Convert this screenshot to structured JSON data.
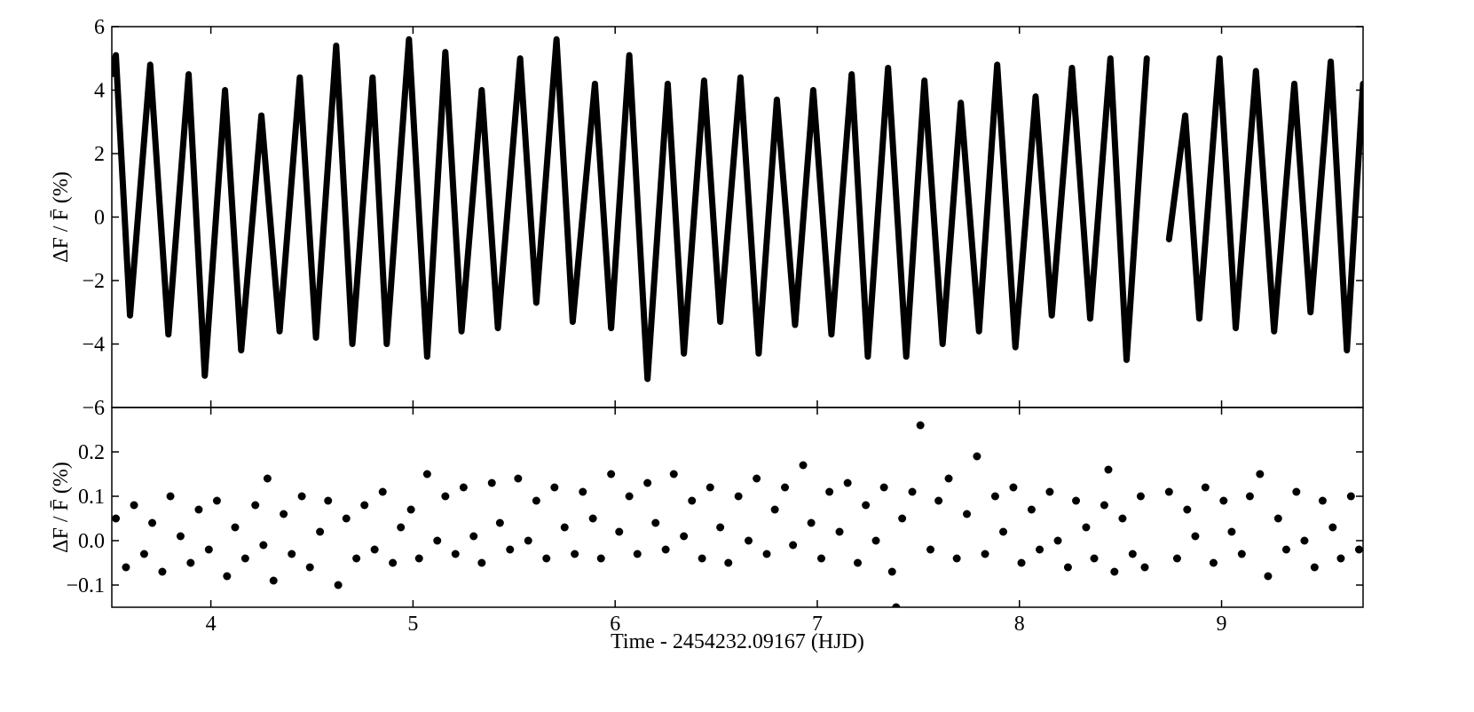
{
  "chart_data": [
    {
      "type": "line",
      "ylabel": "ΔF / F̄ (%)",
      "color": "#000000",
      "x": [
        3.51,
        3.53,
        3.6,
        3.7,
        3.79,
        3.89,
        3.97,
        4.07,
        4.15,
        4.25,
        4.34,
        4.44,
        4.52,
        4.62,
        4.7,
        4.8,
        4.87,
        4.98,
        5.07,
        5.16,
        5.24,
        5.34,
        5.42,
        5.53,
        5.61,
        5.71,
        5.79,
        5.9,
        5.98,
        6.07,
        6.16,
        6.26,
        6.34,
        6.44,
        6.52,
        6.62,
        6.71,
        6.8,
        6.89,
        6.98,
        7.07,
        7.17,
        7.25,
        7.35,
        7.44,
        7.53,
        7.62,
        7.71,
        7.8,
        7.89,
        7.98,
        8.08,
        8.16,
        8.26,
        8.35,
        8.45,
        8.53,
        8.63,
        8.7,
        8.74,
        8.82,
        8.89,
        8.99,
        9.07,
        9.17,
        9.26,
        9.36,
        9.44,
        9.54,
        9.62,
        9.7
      ],
      "values": [
        4.5,
        5.1,
        -3.1,
        4.8,
        -3.7,
        4.5,
        -5.0,
        4.0,
        -4.2,
        3.2,
        -3.6,
        4.4,
        -3.8,
        5.4,
        -4.0,
        4.4,
        -4.0,
        5.6,
        -4.4,
        5.2,
        -3.6,
        4.0,
        -3.5,
        5.0,
        -2.7,
        5.6,
        -3.3,
        4.2,
        -3.5,
        5.1,
        -5.1,
        4.2,
        -4.3,
        4.3,
        -3.3,
        4.4,
        -4.3,
        3.7,
        -3.4,
        4.0,
        -3.7,
        4.5,
        -4.4,
        4.7,
        -4.4,
        4.3,
        -4.0,
        3.6,
        -3.6,
        4.8,
        -4.1,
        3.8,
        -3.1,
        4.7,
        -3.2,
        5.0,
        -4.5,
        5.0,
        null,
        -0.7,
        3.2,
        -3.2,
        5.0,
        -3.5,
        4.6,
        -3.6,
        4.2,
        -3.0,
        4.9,
        -4.2,
        4.2
      ],
      "xlim": [
        3.51,
        9.7
      ],
      "ylim": [
        -6,
        6
      ],
      "yticks": [
        {
          "value": -6,
          "label": "−6"
        },
        {
          "value": -4,
          "label": "−4"
        },
        {
          "value": -2,
          "label": "−2"
        },
        0,
        2,
        4,
        6
      ]
    },
    {
      "type": "scatter",
      "ylabel": "ΔF / F̄ (%)",
      "xlabel": "Time - 2454232.09167 (HJD)",
      "color": "#000000",
      "x": [
        3.53,
        3.58,
        3.62,
        3.67,
        3.71,
        3.76,
        3.8,
        3.85,
        3.9,
        3.94,
        3.99,
        4.03,
        4.08,
        4.12,
        4.17,
        4.22,
        4.26,
        4.28,
        4.31,
        4.36,
        4.4,
        4.45,
        4.49,
        4.54,
        4.58,
        4.63,
        4.67,
        4.72,
        4.76,
        4.81,
        4.85,
        4.9,
        4.94,
        4.99,
        5.03,
        5.07,
        5.12,
        5.16,
        5.21,
        5.25,
        5.3,
        5.34,
        5.39,
        5.43,
        5.48,
        5.52,
        5.57,
        5.61,
        5.66,
        5.7,
        5.75,
        5.8,
        5.84,
        5.89,
        5.93,
        5.98,
        6.02,
        6.07,
        6.11,
        6.16,
        6.2,
        6.25,
        6.29,
        6.34,
        6.38,
        6.43,
        6.47,
        6.52,
        6.56,
        6.61,
        6.66,
        6.7,
        6.75,
        6.79,
        6.84,
        6.88,
        6.93,
        6.97,
        7.02,
        7.06,
        7.11,
        7.15,
        7.2,
        7.24,
        7.29,
        7.33,
        7.37,
        7.39,
        7.42,
        7.47,
        7.51,
        7.56,
        7.6,
        7.65,
        7.69,
        7.74,
        7.79,
        7.83,
        7.88,
        7.92,
        7.97,
        8.01,
        8.06,
        8.1,
        8.15,
        8.19,
        8.24,
        8.28,
        8.33,
        8.37,
        8.42,
        8.44,
        8.47,
        8.51,
        8.56,
        8.6,
        8.62,
        8.74,
        8.78,
        8.83,
        8.87,
        8.92,
        8.96,
        9.01,
        9.05,
        9.1,
        9.14,
        9.19,
        9.23,
        9.28,
        9.32,
        9.37,
        9.41,
        9.46,
        9.5,
        9.55,
        9.59,
        9.64,
        9.68
      ],
      "values": [
        0.05,
        -0.06,
        0.08,
        -0.03,
        0.04,
        -0.07,
        0.1,
        0.01,
        -0.05,
        0.07,
        -0.02,
        0.09,
        -0.08,
        0.03,
        -0.04,
        0.08,
        -0.01,
        0.14,
        -0.09,
        0.06,
        -0.03,
        0.1,
        -0.06,
        0.02,
        0.09,
        -0.1,
        0.05,
        -0.04,
        0.08,
        -0.02,
        0.11,
        -0.05,
        0.03,
        0.07,
        -0.04,
        0.15,
        0.0,
        0.1,
        -0.03,
        0.12,
        0.01,
        -0.05,
        0.13,
        0.04,
        -0.02,
        0.14,
        0.0,
        0.09,
        -0.04,
        0.12,
        0.03,
        -0.03,
        0.11,
        0.05,
        -0.04,
        0.15,
        0.02,
        0.1,
        -0.03,
        0.13,
        0.04,
        -0.02,
        0.15,
        0.01,
        0.09,
        -0.04,
        0.12,
        0.03,
        -0.05,
        0.1,
        0.0,
        0.14,
        -0.03,
        0.07,
        0.12,
        -0.01,
        0.17,
        0.04,
        -0.04,
        0.11,
        0.02,
        0.13,
        -0.05,
        0.08,
        0.0,
        0.12,
        -0.07,
        -0.15,
        0.05,
        0.11,
        0.26,
        -0.02,
        0.09,
        0.14,
        -0.04,
        0.06,
        0.19,
        -0.03,
        0.1,
        0.02,
        0.12,
        -0.05,
        0.07,
        -0.02,
        0.11,
        0.0,
        -0.06,
        0.09,
        0.03,
        -0.04,
        0.08,
        0.16,
        -0.07,
        0.05,
        -0.03,
        0.1,
        -0.06,
        0.11,
        -0.04,
        0.07,
        0.01,
        0.12,
        -0.05,
        0.09,
        0.02,
        -0.03,
        0.1,
        0.15,
        -0.08,
        0.05,
        -0.02,
        0.11,
        0.0,
        -0.06,
        0.09,
        0.03,
        -0.04,
        0.1,
        -0.02
      ],
      "xlim": [
        3.51,
        9.7
      ],
      "ylim": [
        -0.15,
        0.3
      ],
      "xticks": [
        4,
        5,
        6,
        7,
        8,
        9
      ],
      "yticks": [
        {
          "value": -0.1,
          "label": "−0.1"
        },
        {
          "value": 0,
          "label": "0.0"
        },
        0.1,
        0.2
      ]
    }
  ]
}
